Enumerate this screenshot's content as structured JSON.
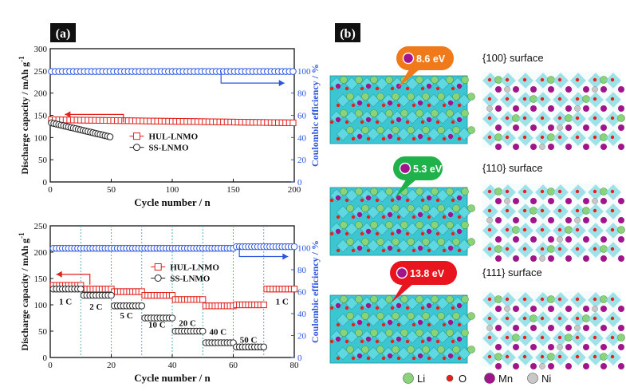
{
  "panel_a": {
    "label": "(a)",
    "chart_data": [
      {
        "type": "scatter",
        "xlabel": "Cycle number / n",
        "ylabel": "Discharge capacity / mAh g",
        "ylabel_sup": "-1",
        "y2label": "Coulombic efficiency / %",
        "xlim": [
          0,
          200
        ],
        "ylim": [
          0,
          300
        ],
        "y2lim": [
          0,
          120
        ],
        "xticks": [
          0,
          50,
          100,
          150,
          200
        ],
        "yticks": [
          0,
          50,
          100,
          150,
          200,
          250,
          300
        ],
        "y2ticks": [
          0,
          20,
          40,
          60,
          80,
          100
        ],
        "grid": false,
        "legend": "center",
        "series": [
          {
            "name": "HUL-LNMO",
            "marker": "square-open",
            "color": "#e0201b",
            "axis": "left",
            "x_start": 1,
            "x_end": 200,
            "y_start": 140,
            "y_end": 133
          },
          {
            "name": "SS-LNMO",
            "marker": "circle-open",
            "color": "#222222",
            "axis": "left",
            "x_start": 1,
            "x_end": 50,
            "y_start": 133,
            "y_end": 101
          },
          {
            "name": "",
            "marker": "circle-open",
            "color": "#2a55e0",
            "axis": "right",
            "x_start": 1,
            "x_end": 200,
            "y_start": 99.5,
            "y_end": 99.5
          }
        ]
      },
      {
        "type": "scatter",
        "xlabel": "Cycle number / n",
        "ylabel": "Discharge capacity / mAh g",
        "ylabel_sup": "-1",
        "y2label": "Coulombic efficiency / %",
        "xlim": [
          0,
          80
        ],
        "ylim": [
          0,
          250
        ],
        "y2lim": [
          0,
          120
        ],
        "xticks": [
          0,
          20,
          40,
          60,
          80
        ],
        "yticks": [
          0,
          50,
          100,
          150,
          200,
          250
        ],
        "y2ticks": [
          0,
          20,
          40,
          60,
          80,
          100
        ],
        "grid": false,
        "legend": "top-center",
        "rate_labels": [
          {
            "text": "1 C",
            "x": 5,
            "y": 101
          },
          {
            "text": "2 C",
            "x": 15,
            "y": 91
          },
          {
            "text": "5 C",
            "x": 25,
            "y": 74
          },
          {
            "text": "10 C",
            "x": 35,
            "y": 57
          },
          {
            "text": "20 C",
            "x": 45,
            "y": 60
          },
          {
            "text": "40 C",
            "x": 55,
            "y": 43
          },
          {
            "text": "50 C",
            "x": 65,
            "y": 28
          },
          {
            "text": "1 C",
            "x": 76,
            "y": 101
          }
        ],
        "series": [
          {
            "name": "HUL-LNMO",
            "marker": "square-open",
            "color": "#e0201b",
            "axis": "left",
            "steps": [
              {
                "from": 1,
                "to": 10,
                "value": 137
              },
              {
                "from": 11,
                "to": 20,
                "value": 130
              },
              {
                "from": 21,
                "to": 30,
                "value": 125
              },
              {
                "from": 31,
                "to": 40,
                "value": 118
              },
              {
                "from": 41,
                "to": 50,
                "value": 110
              },
              {
                "from": 51,
                "to": 60,
                "value": 98
              },
              {
                "from": 61,
                "to": 70,
                "value": 100
              },
              {
                "from": 71,
                "to": 80,
                "value": 130
              }
            ]
          },
          {
            "name": "SS-LNMO",
            "marker": "circle-open",
            "color": "#222222",
            "axis": "left",
            "steps": [
              {
                "from": 1,
                "to": 10,
                "value": 130
              },
              {
                "from": 11,
                "to": 20,
                "value": 118
              },
              {
                "from": 21,
                "to": 30,
                "value": 98
              },
              {
                "from": 31,
                "to": 40,
                "value": 75
              },
              {
                "from": 41,
                "to": 50,
                "value": 50
              },
              {
                "from": 51,
                "to": 60,
                "value": 28
              },
              {
                "from": 61,
                "to": 70,
                "value": 20
              }
            ]
          },
          {
            "name": "",
            "marker": "circle-open",
            "color": "#2a55e0",
            "axis": "right",
            "steps": [
              {
                "from": 1,
                "to": 60,
                "value": 99.5
              },
              {
                "from": 61,
                "to": 80,
                "value": 101
              }
            ]
          }
        ]
      }
    ]
  },
  "panel_b": {
    "label": "(b)",
    "surfaces": [
      {
        "energy": "8.6 eV",
        "title": "{100} surface",
        "bubble_color": "#f07a1a"
      },
      {
        "energy": "5.3 eV",
        "title": "{110} surface",
        "bubble_color": "#1fb14a"
      },
      {
        "energy": "13.8 eV",
        "title": "{111} surface",
        "bubble_color": "#e8141e"
      }
    ],
    "legend": [
      {
        "symbol": "Li",
        "color": "#8bd37a"
      },
      {
        "symbol": "O",
        "color": "#e8201b"
      },
      {
        "symbol": "Mn",
        "color": "#a0148c"
      },
      {
        "symbol": "Ni",
        "color": "#c8c8c8"
      }
    ]
  }
}
